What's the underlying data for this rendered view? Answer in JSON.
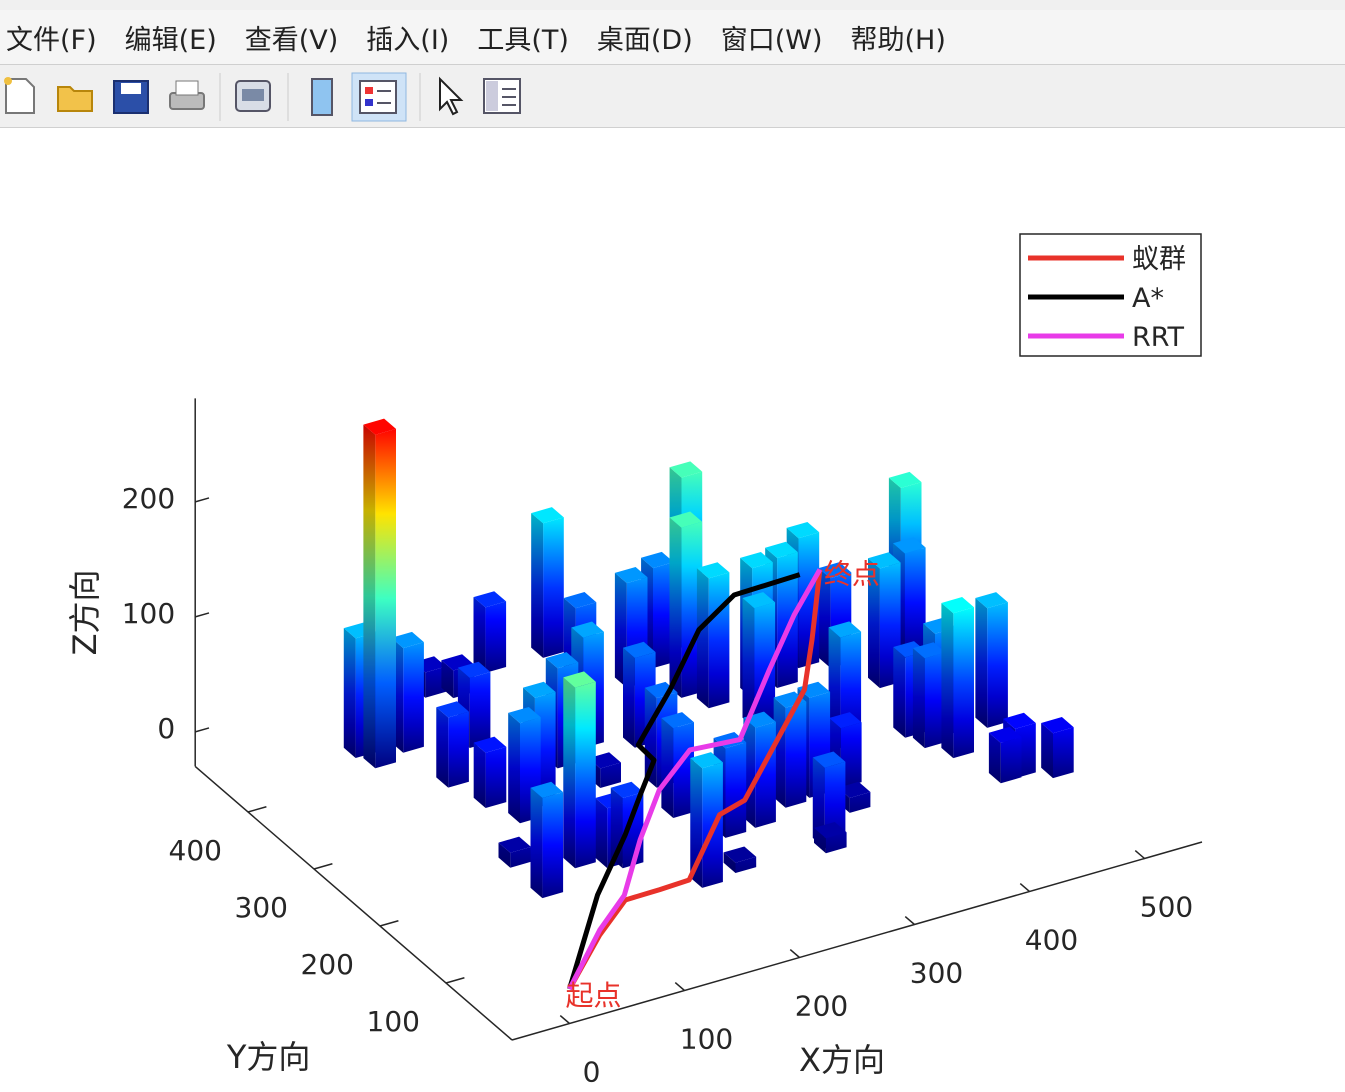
{
  "menu": [
    "文件(F)",
    "编辑(E)",
    "查看(V)",
    "插入(I)",
    "工具(T)",
    "桌面(D)",
    "窗口(W)",
    "帮助(H)"
  ],
  "chart_data": {
    "type": "bar3",
    "xlabel": "X方向",
    "ylabel": "Y方向",
    "zlabel": "Z方向",
    "xlim": [
      -50,
      550
    ],
    "ylim": [
      0,
      480
    ],
    "zlim": [
      -30,
      290
    ],
    "xticks": [
      0,
      100,
      200,
      300,
      400,
      500
    ],
    "yticks": [
      100,
      200,
      300,
      400
    ],
    "zticks": [
      0,
      100,
      200
    ],
    "colormap": "jet",
    "bars": {
      "x": [
        49,
        44,
        79,
        135,
        153,
        193,
        82,
        126,
        91,
        102,
        242,
        60,
        62,
        123,
        104,
        168,
        233,
        200,
        274,
        306,
        340,
        302,
        234,
        218,
        206,
        172,
        312,
        348,
        372,
        401,
        327,
        252,
        225,
        287,
        310,
        368,
        282,
        338,
        422,
        439,
        483,
        478,
        418,
        423,
        434,
        479,
        437,
        446,
        459,
        484,
        205,
        279,
        325,
        181,
        125,
        135
      ],
      "y": [
        373,
        394,
        383,
        447,
        436,
        457,
        320,
        364,
        279,
        246,
        455,
        139,
        191,
        260,
        166,
        304,
        390,
        321,
        384,
        400,
        416,
        350,
        302,
        241,
        195,
        92,
        326,
        323,
        327,
        345,
        283,
        151,
        149,
        166,
        170,
        224,
        98,
        171,
        333,
        288,
        333,
        318,
        213,
        192,
        168,
        195,
        201,
        117,
        118,
        104,
        99,
        91,
        135,
        262,
        154,
        148
      ],
      "z": [
        290,
        104,
        91,
        22,
        24,
        57,
        61,
        61,
        48,
        87,
        117,
        87,
        13,
        96,
        157,
        87,
        78,
        96,
        91,
        87,
        148,
        148,
        78,
        78,
        78,
        104,
        113,
        113,
        113,
        113,
        104,
        87,
        78,
        87,
        87,
        96,
        70,
        52,
        78,
        104,
        139,
        91,
        70,
        78,
        126,
        104,
        91,
        35,
        43,
        39,
        9,
        13,
        13,
        17,
        52,
        61
      ]
    },
    "series": [
      {
        "name": "蚁群",
        "color": "#e8322a",
        "x": [
          0,
          56,
          95,
          121,
          143,
          208,
          231,
          288,
          345,
          383,
          437
        ],
        "y": [
          0,
          52,
          81,
          74,
          68,
          135,
          137,
          191,
          245,
          300,
          382
        ],
        "z": [
          0,
          5,
          10,
          15,
          20,
          25,
          30,
          35,
          40,
          45,
          50
        ]
      },
      {
        "name": "A*",
        "color": "#000000",
        "x": [
          0,
          84,
          143,
          178,
          209,
          205,
          263,
          322,
          367,
          420
        ],
        "y": [
          0,
          104,
          165,
          203,
          236,
          253,
          306,
          365,
          390,
          383
        ],
        "z": [
          0,
          6,
          11,
          17,
          22,
          28,
          33,
          39,
          44,
          50
        ]
      },
      {
        "name": "RRT",
        "color": "#e83be8",
        "x": [
          0,
          59,
          97,
          144,
          190,
          235,
          271,
          338,
          391,
          437
        ],
        "y": [
          0,
          57,
          86,
          144,
          195,
          227,
          214,
          286,
          341,
          382
        ],
        "z": [
          0,
          6,
          11,
          17,
          22,
          28,
          33,
          39,
          44,
          50
        ]
      }
    ],
    "annotations": [
      "起点",
      "终点"
    ],
    "legend": "upper right"
  }
}
